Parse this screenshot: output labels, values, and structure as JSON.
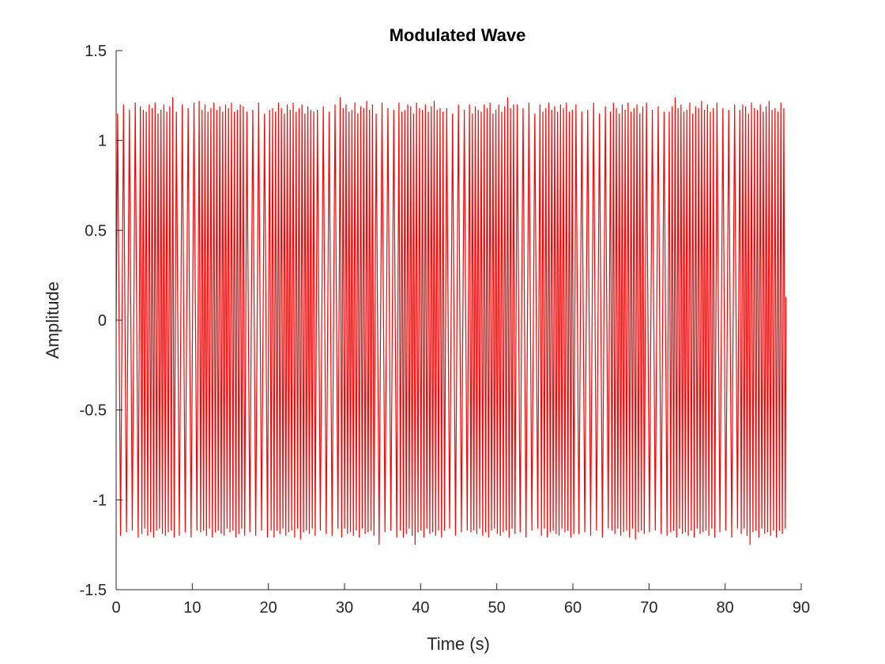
{
  "chart_data": {
    "type": "line",
    "title": "Modulated Wave",
    "xlabel": "Time (s)",
    "ylabel": "Amplitude",
    "xlim": [
      0,
      90
    ],
    "ylim": [
      -1.5,
      1.5
    ],
    "xticks": [
      "0",
      "10",
      "20",
      "30",
      "40",
      "50",
      "60",
      "70",
      "80",
      "90"
    ],
    "yticks": [
      "-1.5",
      "-1",
      "-0.5",
      "0",
      "0.5",
      "1",
      "1.5"
    ],
    "grid": false,
    "legend": "none",
    "series": [
      {
        "color": "#ff0000",
        "x_range": [
          0,
          88
        ],
        "y_peaks": [
          1.15,
          1.2,
          1.17,
          1.21,
          1.16,
          1.18,
          1.2,
          1.15,
          1.19,
          1.17,
          1.16,
          1.2,
          1.18,
          1.21,
          1.15,
          1.17,
          1.2,
          1.16,
          1.19,
          1.24,
          1.18,
          1.2,
          1.16,
          1.17,
          1.21,
          1.15,
          1.19,
          1.18,
          1.22,
          1.17,
          1.2,
          1.16,
          1.18,
          1.21,
          1.17,
          1.19,
          1.16,
          1.2,
          1.18,
          1.21,
          1.16,
          1.17,
          1.2,
          1.19,
          1.15,
          1.21,
          1.18,
          1.17,
          1.2,
          1.16,
          1.19,
          1.22,
          1.17,
          1.18,
          1.16,
          1.21,
          1.18
        ],
        "y_troughs": [
          -1.17,
          -1.19,
          -1.16,
          -1.2,
          -1.18,
          -1.17,
          -1.21,
          -1.16,
          -1.22,
          -1.18,
          -1.17,
          -1.19,
          -1.16,
          -1.2,
          -1.18,
          -1.21,
          -1.17,
          -1.16,
          -1.19,
          -1.2,
          -1.18,
          -1.17,
          -1.21,
          -1.16,
          -1.19,
          -1.18,
          -1.2,
          -1.17,
          -1.21,
          -1.16,
          -1.19,
          -1.18,
          -1.17,
          -1.2,
          -1.16,
          -1.21,
          -1.18,
          -1.17,
          -1.19,
          -1.2,
          -1.16,
          -1.18,
          -1.17,
          -1.21,
          -1.19,
          -1.16,
          -1.2,
          -1.25,
          -1.18,
          -1.17,
          -1.21,
          -1.16,
          -1.19,
          -1.18,
          -1.2,
          -1.17,
          -1.21
        ],
        "end_value": 0.13
      }
    ]
  }
}
